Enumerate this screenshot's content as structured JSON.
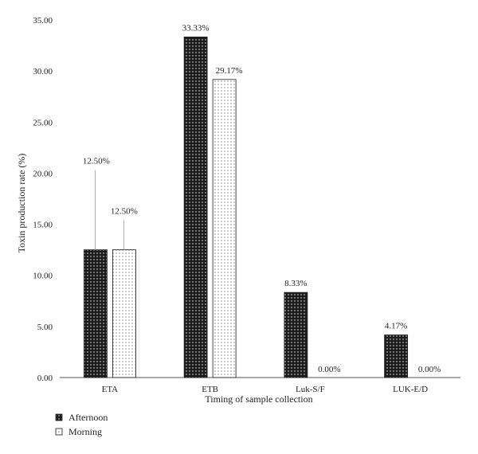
{
  "chart_data": {
    "type": "bar",
    "categories": [
      "ETA",
      "ETB",
      "Luk-S/F",
      "LUK-E/D"
    ],
    "series": [
      {
        "name": "Afternoon",
        "values": [
          12.5,
          33.33,
          8.33,
          4.17
        ],
        "labels": [
          "12.50%",
          "33.33%",
          "8.33%",
          "4.17%"
        ],
        "fill": "dark-dotted"
      },
      {
        "name": "Morning",
        "values": [
          12.5,
          29.17,
          0,
          0
        ],
        "labels": [
          "12.50%",
          "29.17%",
          "0.00%",
          "0.00%"
        ],
        "fill": "light-dotted"
      }
    ],
    "title": "",
    "xlabel": "Timing of sample collection",
    "ylabel": "Toxin production rate (%)",
    "ylim": [
      0,
      35
    ],
    "yticks": [
      "0.00",
      "5.00",
      "10.00",
      "15.00",
      "20.00",
      "25.00",
      "30.00",
      "35.00"
    ],
    "grid": false,
    "legend_position": "bottom-left"
  },
  "colors": {
    "dark_bar": "#1c1c1c",
    "light_bar": "#ffffff",
    "axis": "#555555",
    "text": "#222222"
  }
}
